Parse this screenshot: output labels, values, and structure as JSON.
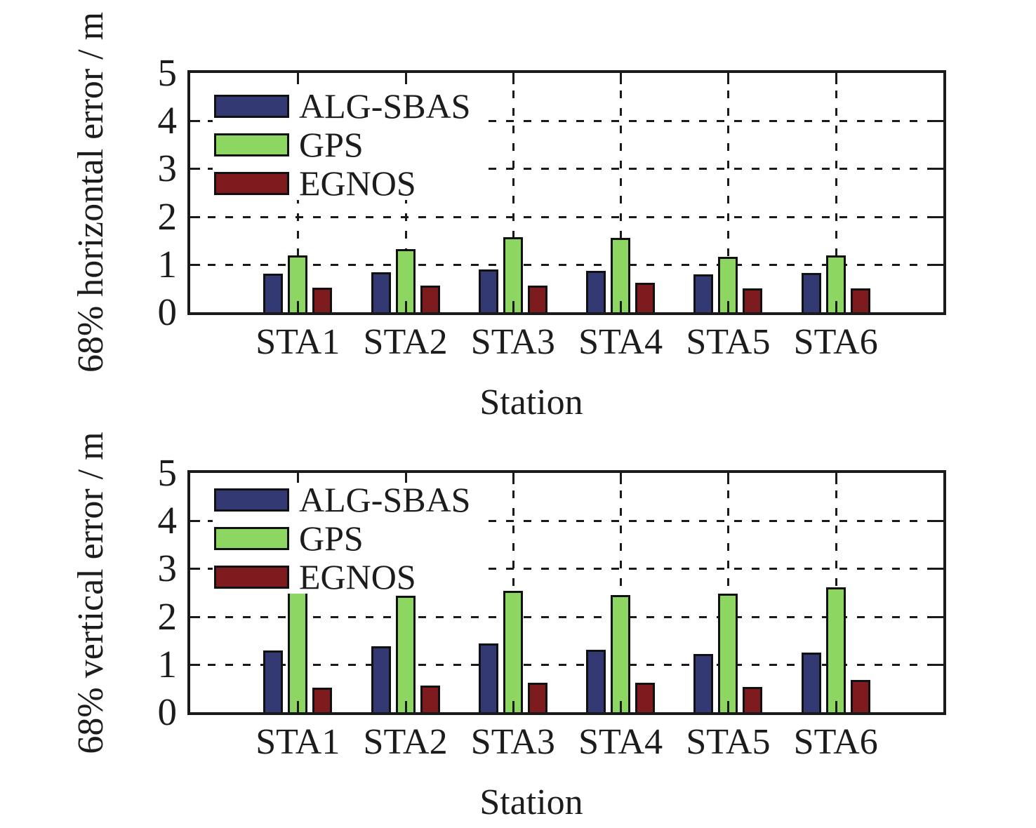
{
  "figure": {
    "background": "#ffffff",
    "frame_color": "#1a1a1a",
    "grid_style": "dashed"
  },
  "chart_data": [
    {
      "type": "bar",
      "title": "",
      "ylabel": "68% horizontal error / m",
      "xlabel": "Station",
      "categories": [
        "STA1",
        "STA2",
        "STA3",
        "STA4",
        "STA5",
        "STA6"
      ],
      "series": [
        {
          "name": "ALG-SBAS",
          "color": "#333A73",
          "values": [
            0.8,
            0.83,
            0.9,
            0.86,
            0.79,
            0.82
          ]
        },
        {
          "name": "GPS",
          "color": "#8CD661",
          "values": [
            1.19,
            1.32,
            1.57,
            1.56,
            1.16,
            1.19
          ]
        },
        {
          "name": "EGNOS",
          "color": "#7E1B1F",
          "values": [
            0.51,
            0.56,
            0.56,
            0.61,
            0.5,
            0.5
          ]
        }
      ],
      "ylim": [
        0,
        5
      ],
      "yticks": [
        0,
        1,
        2,
        3,
        4,
        5
      ],
      "grid": true,
      "legend_position": "upper-left"
    },
    {
      "type": "bar",
      "title": "",
      "ylabel": "68% vertical error / m",
      "xlabel": "Station",
      "categories": [
        "STA1",
        "STA2",
        "STA3",
        "STA4",
        "STA5",
        "STA6"
      ],
      "series": [
        {
          "name": "ALG-SBAS",
          "color": "#333A73",
          "values": [
            1.29,
            1.38,
            1.44,
            1.31,
            1.21,
            1.25
          ]
        },
        {
          "name": "GPS",
          "color": "#8CD661",
          "values": [
            2.58,
            2.44,
            2.53,
            2.45,
            2.48,
            2.61
          ]
        },
        {
          "name": "EGNOS",
          "color": "#7E1B1F",
          "values": [
            0.52,
            0.56,
            0.61,
            0.61,
            0.53,
            0.67
          ]
        }
      ],
      "ylim": [
        0,
        5
      ],
      "yticks": [
        0,
        1,
        2,
        3,
        4,
        5
      ],
      "grid": true,
      "legend_position": "upper-left"
    }
  ]
}
